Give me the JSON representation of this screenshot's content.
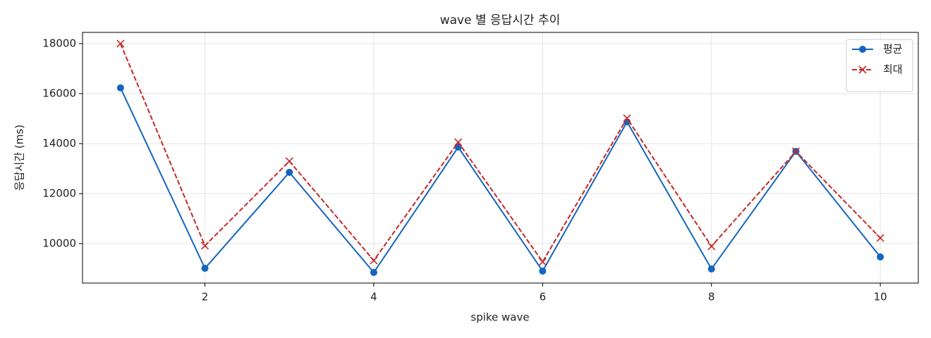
{
  "chart_data": {
    "type": "line",
    "title": "wave 별 응답시간 추이",
    "x_label": "spike wave",
    "y_label": "응답시간 (ms)",
    "x": [
      1,
      2,
      3,
      4,
      5,
      6,
      7,
      8,
      9,
      10
    ],
    "series": [
      {
        "name": "평균",
        "color": "#1565c0",
        "marker": "o",
        "linestyle": "solid",
        "values": [
          16230,
          9010,
          12850,
          8845,
          13860,
          8900,
          14870,
          8985,
          13690,
          9465
        ]
      },
      {
        "name": "최대",
        "color": "#c62828",
        "marker": "x",
        "linestyle": "dashed",
        "values": [
          18000,
          9915,
          13295,
          9325,
          14055,
          9270,
          15015,
          9890,
          13690,
          10225
        ]
      }
    ],
    "xlim": [
      0.55,
      10.45
    ],
    "xticks": [
      2,
      4,
      6,
      8,
      10
    ],
    "ylim": [
      8420,
      18450
    ],
    "yticks": [
      10000,
      12000,
      14000,
      16000,
      18000
    ],
    "grid": true,
    "legend": "upper right"
  }
}
